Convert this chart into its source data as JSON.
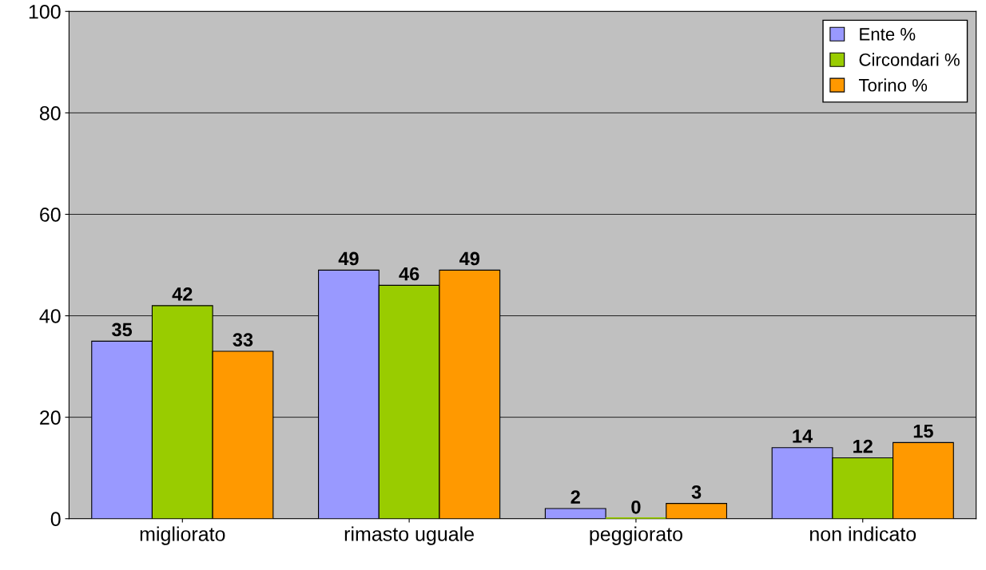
{
  "chart_data": {
    "type": "bar",
    "categories": [
      "migliorato",
      "rimasto uguale",
      "peggiorato",
      "non indicato"
    ],
    "series": [
      {
        "name": "Ente %",
        "color": "#9999ff",
        "values": [
          35,
          49,
          2,
          14
        ]
      },
      {
        "name": "Circondari %",
        "color": "#99cc00",
        "values": [
          42,
          46,
          0,
          12
        ]
      },
      {
        "name": "Torino %",
        "color": "#ff9900",
        "values": [
          33,
          49,
          3,
          15
        ]
      }
    ],
    "ylim": [
      0,
      100
    ],
    "yticks": [
      0,
      20,
      40,
      60,
      80,
      100
    ],
    "grid": "y",
    "legend": "top right",
    "data_labels": true
  }
}
